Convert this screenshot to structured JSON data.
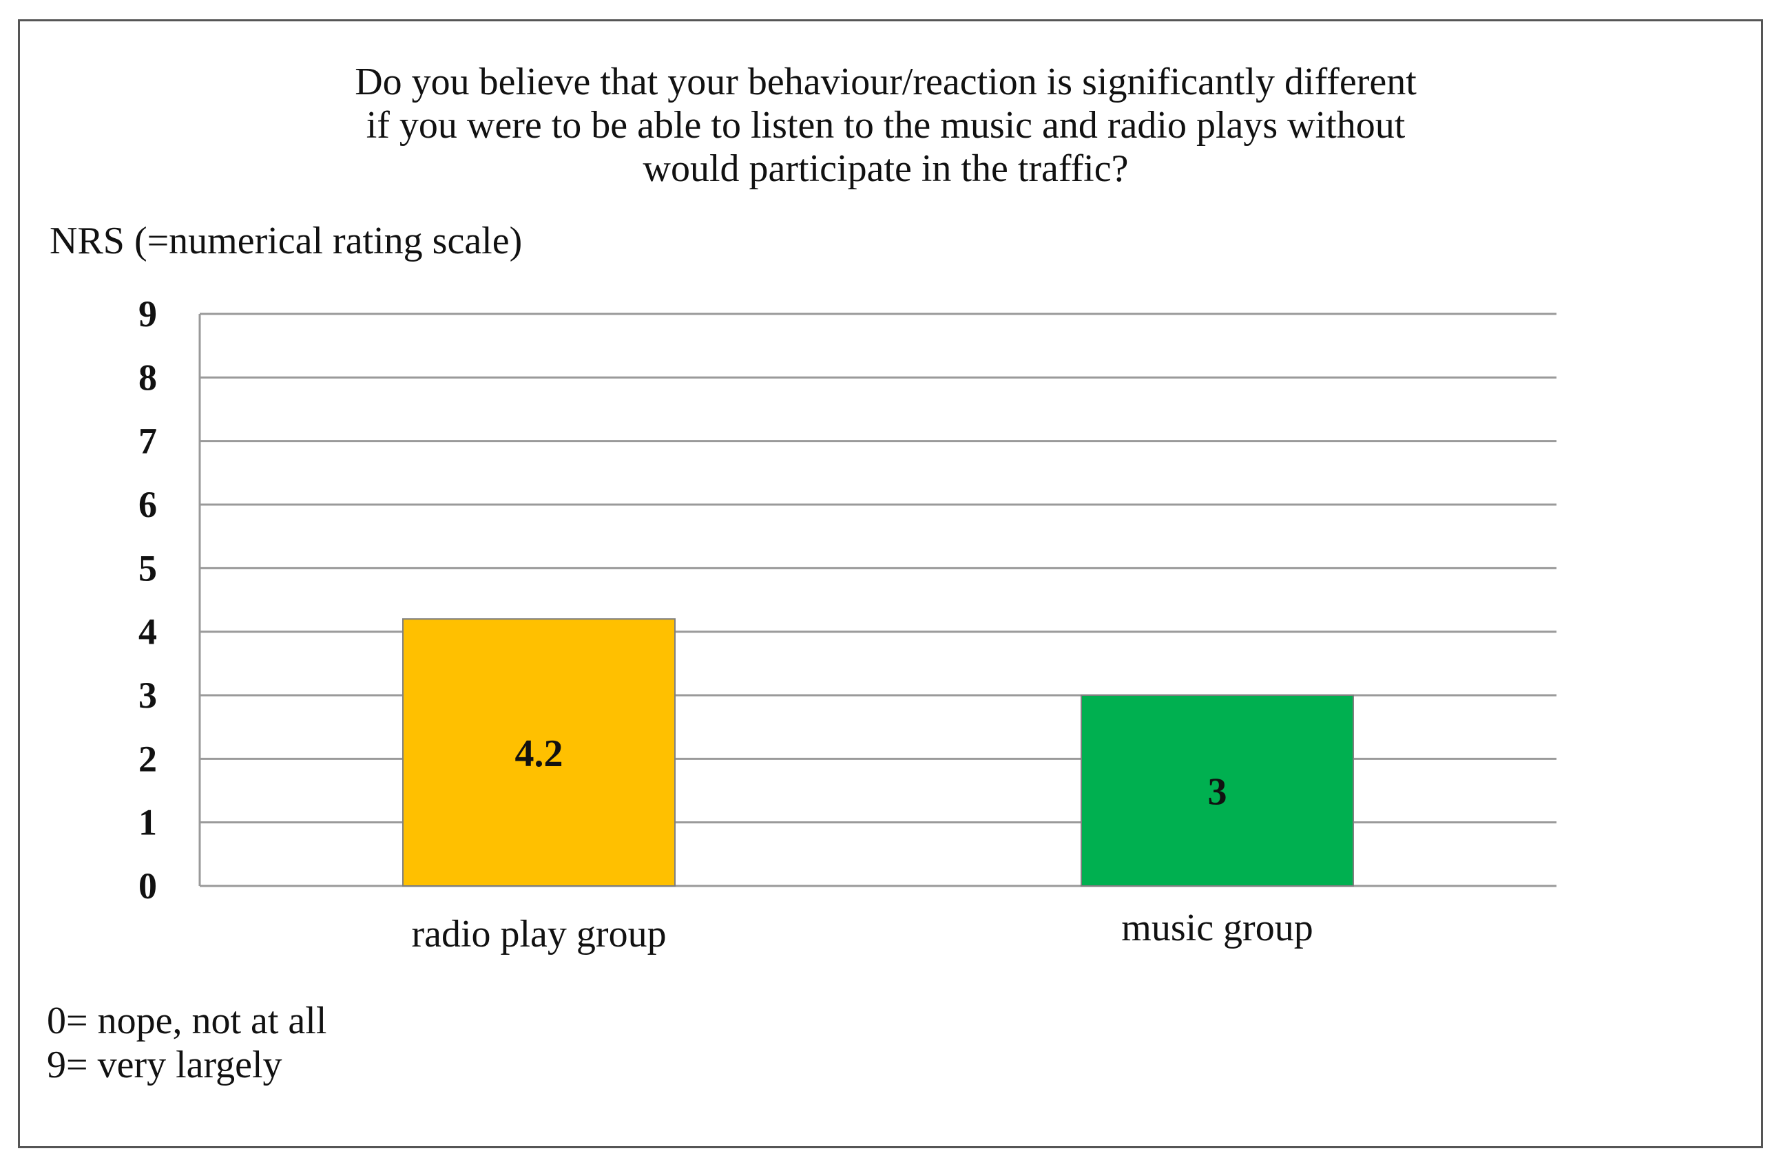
{
  "chart_data": {
    "type": "bar",
    "title_lines": [
      "Do you believe that your behaviour/reaction is significantly different",
      "if you were to be able to listen to the music and radio plays without",
      "would participate in the traffic?"
    ],
    "xlabel": "",
    "ylabel": "NRS (=numerical rating scale)",
    "ylim": [
      0,
      9
    ],
    "yticks": [
      "0",
      "1",
      "2",
      "3",
      "4",
      "5",
      "6",
      "7",
      "8",
      "9"
    ],
    "categories": [
      "radio play group",
      "music group"
    ],
    "values": [
      4.2,
      3
    ],
    "data_labels": [
      "4.2",
      "3"
    ],
    "colors": [
      "#FFC000",
      "#00B050"
    ],
    "bar_border": "#7f7f7f",
    "grid": true,
    "legend": "none",
    "notes": [
      "0= nope, not at all",
      "9= very largely"
    ]
  }
}
